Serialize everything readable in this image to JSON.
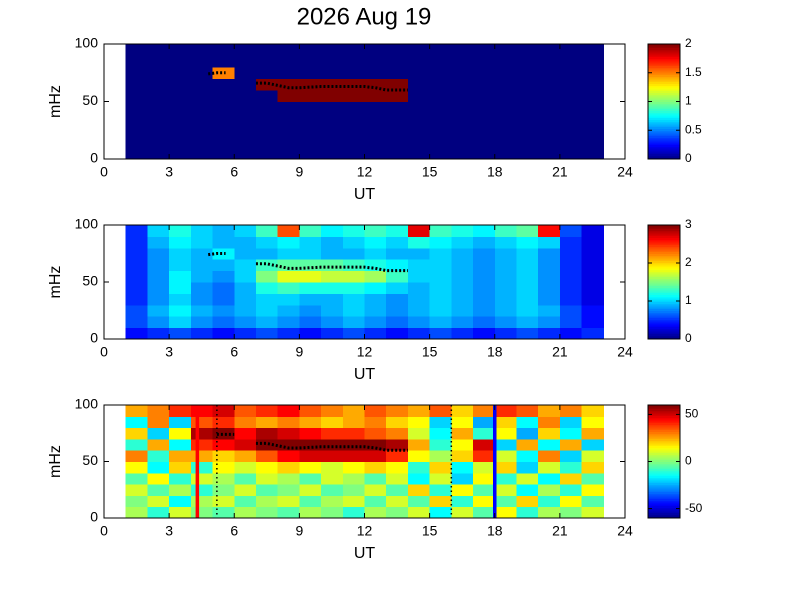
{
  "chart_data": [
    {
      "type": "heatmap",
      "title": "2026 Aug 19",
      "xlabel": "UT",
      "ylabel": "mHz",
      "xlim": [
        0,
        24
      ],
      "xticks": [
        0,
        3,
        6,
        9,
        12,
        15,
        18,
        21,
        24
      ],
      "ylim": [
        0,
        100
      ],
      "yticks": [
        0,
        50,
        100
      ],
      "x_edges": [
        1,
        2,
        3,
        4,
        5,
        6,
        7,
        8,
        9,
        10,
        11,
        12,
        13,
        14,
        15,
        16,
        17,
        18,
        19,
        20,
        21,
        22,
        23
      ],
      "y_edges": [
        0,
        10,
        20,
        30,
        40,
        50,
        60,
        70,
        80,
        90,
        100
      ],
      "colormap": "jet",
      "clim": [
        0,
        2
      ],
      "cticks": [
        0,
        0.5,
        1,
        1.5,
        2
      ],
      "z": [
        [
          0,
          0,
          0,
          0,
          0,
          0,
          0,
          0,
          0,
          0,
          0,
          0,
          0,
          0,
          0,
          0,
          0,
          0,
          0,
          0,
          0,
          0
        ],
        [
          0,
          0,
          0,
          0,
          0,
          0,
          0,
          0,
          0,
          0,
          0,
          0,
          0,
          0,
          0,
          0,
          0,
          0,
          0,
          0,
          0,
          0
        ],
        [
          0,
          0,
          0,
          0,
          0,
          0,
          0,
          0,
          0,
          0,
          0,
          0,
          0,
          0,
          0,
          0,
          0,
          0,
          0,
          0,
          0,
          0
        ],
        [
          0,
          0,
          0,
          0,
          0,
          0,
          0,
          0,
          0,
          0,
          0,
          0,
          0,
          0,
          0,
          0,
          0,
          0,
          0,
          0,
          0,
          0
        ],
        [
          0,
          0,
          0,
          0,
          0,
          0,
          0,
          0,
          0,
          0,
          0,
          0,
          0,
          0,
          0,
          0,
          0,
          0,
          0,
          0,
          0,
          0
        ],
        [
          0,
          0,
          0,
          0,
          0,
          0,
          0,
          2,
          2,
          2,
          2,
          2,
          2,
          0,
          0,
          0,
          0,
          0,
          0,
          0,
          0,
          0
        ],
        [
          0,
          0,
          0,
          0,
          0,
          0,
          2,
          2,
          2,
          2,
          2,
          2,
          2,
          0,
          0,
          0,
          0,
          0,
          0,
          0,
          0,
          0
        ],
        [
          0,
          0,
          0,
          0,
          1.5,
          0,
          0,
          0,
          0,
          0,
          0,
          0,
          0,
          0,
          0,
          0,
          0,
          0,
          0,
          0,
          0,
          0
        ],
        [
          0,
          0,
          0,
          0,
          0,
          0,
          0,
          0,
          0,
          0,
          0,
          0,
          0,
          0,
          0,
          0,
          0,
          0,
          0,
          0,
          0,
          0
        ],
        [
          0,
          0,
          0,
          0,
          0,
          0,
          0,
          0,
          0,
          0,
          0,
          0,
          0,
          0,
          0,
          0,
          0,
          0,
          0,
          0,
          0,
          0
        ]
      ],
      "trace": {
        "color": "#000000",
        "x": [
          4.8,
          5.2,
          5.6,
          6.3,
          7,
          7.5,
          8,
          8.5,
          9,
          10,
          11,
          12,
          12.5,
          13,
          14
        ],
        "y": [
          74,
          75,
          75,
          null,
          66,
          66,
          64,
          62,
          62,
          63,
          63,
          63,
          62,
          60,
          60
        ]
      }
    },
    {
      "type": "heatmap",
      "xlabel": "UT",
      "ylabel": "mHz",
      "xlim": [
        0,
        24
      ],
      "xticks": [
        0,
        3,
        6,
        9,
        12,
        15,
        18,
        21,
        24
      ],
      "ylim": [
        0,
        100
      ],
      "yticks": [
        0,
        50,
        100
      ],
      "x_edges": [
        1,
        2,
        3,
        4,
        5,
        6,
        7,
        8,
        9,
        10,
        11,
        12,
        13,
        14,
        15,
        16,
        17,
        18,
        19,
        20,
        21,
        22,
        23
      ],
      "y_edges": [
        0,
        10,
        20,
        30,
        40,
        50,
        60,
        70,
        80,
        90,
        100
      ],
      "colormap": "jet",
      "clim": [
        0,
        3
      ],
      "cticks": [
        0,
        1,
        2,
        3
      ],
      "z": [
        [
          0.4,
          0.5,
          0.6,
          0.5,
          0.4,
          0.5,
          0.6,
          0.5,
          0.4,
          0.5,
          0.6,
          0.5,
          0.4,
          0.5,
          0.6,
          0.5,
          0.4,
          0.5,
          0.6,
          0.5,
          0.4,
          0.5
        ],
        [
          0.6,
          0.8,
          1.0,
          0.8,
          0.7,
          0.8,
          0.9,
          0.8,
          0.7,
          0.8,
          0.9,
          0.8,
          0.7,
          0.8,
          0.9,
          0.8,
          0.7,
          0.8,
          0.9,
          0.8,
          0.6,
          0.4
        ],
        [
          0.6,
          0.9,
          1.1,
          0.9,
          0.8,
          0.9,
          1.0,
          0.9,
          0.8,
          0.9,
          1.0,
          0.9,
          0.8,
          0.9,
          1.0,
          0.9,
          0.8,
          0.9,
          1.0,
          0.9,
          0.6,
          0.4
        ],
        [
          0.5,
          0.8,
          1.0,
          0.8,
          0.7,
          0.9,
          1.0,
          1.0,
          0.9,
          0.9,
          1.0,
          0.9,
          0.8,
          0.9,
          1.0,
          0.9,
          0.8,
          0.9,
          1.0,
          0.8,
          0.5,
          0.3
        ],
        [
          0.5,
          0.8,
          1.1,
          0.8,
          0.7,
          0.9,
          1.2,
          1.3,
          1.2,
          1.2,
          1.2,
          1.1,
          1.0,
          0.9,
          1.0,
          0.9,
          0.8,
          0.9,
          1.0,
          0.8,
          0.5,
          0.3
        ],
        [
          0.5,
          0.8,
          1.1,
          0.9,
          0.8,
          1.0,
          1.5,
          1.8,
          1.8,
          1.7,
          1.7,
          1.6,
          1.3,
          1.0,
          1.0,
          0.9,
          0.8,
          0.9,
          1.0,
          0.8,
          0.5,
          0.3
        ],
        [
          0.5,
          0.8,
          1.0,
          0.9,
          0.9,
          1.0,
          1.3,
          1.4,
          1.4,
          1.4,
          1.3,
          1.2,
          1.1,
          1.0,
          1.0,
          0.9,
          0.8,
          0.9,
          1.0,
          0.8,
          0.5,
          0.3
        ],
        [
          0.5,
          0.8,
          1.0,
          0.9,
          1.1,
          0.9,
          0.9,
          1.0,
          1.0,
          0.9,
          0.9,
          1.0,
          0.9,
          0.9,
          1.0,
          0.9,
          0.8,
          0.9,
          1.0,
          0.8,
          0.5,
          0.3
        ],
        [
          0.5,
          0.9,
          1.1,
          1.0,
          0.9,
          0.9,
          1.0,
          1.1,
          1.0,
          0.9,
          1.0,
          1.1,
          1.0,
          1.2,
          1.1,
          1.0,
          0.9,
          1.0,
          1.1,
          1.0,
          0.5,
          0.3
        ],
        [
          0.5,
          1.0,
          1.2,
          1.0,
          0.9,
          1.0,
          1.3,
          2.4,
          1.3,
          1.1,
          1.2,
          1.3,
          1.2,
          2.7,
          1.3,
          1.2,
          1.1,
          1.3,
          1.4,
          2.6,
          0.6,
          0.3
        ]
      ],
      "trace": {
        "color": "#000000",
        "x": [
          4.8,
          5.2,
          5.6,
          6.3,
          7,
          7.5,
          8,
          8.5,
          9,
          10,
          11,
          12,
          12.5,
          13,
          14
        ],
        "y": [
          74,
          75,
          75,
          null,
          66,
          66,
          64,
          62,
          62,
          63,
          63,
          63,
          62,
          60,
          60
        ]
      }
    },
    {
      "type": "heatmap",
      "xlabel": "UT",
      "ylabel": "mHz",
      "xlim": [
        0,
        24
      ],
      "xticks": [
        0,
        3,
        6,
        9,
        12,
        15,
        18,
        21,
        24
      ],
      "ylim": [
        0,
        100
      ],
      "yticks": [
        0,
        50,
        100
      ],
      "x_edges": [
        1,
        2,
        3,
        4,
        5,
        6,
        7,
        8,
        9,
        10,
        11,
        12,
        13,
        14,
        15,
        16,
        17,
        18,
        19,
        20,
        21,
        22,
        23
      ],
      "y_edges": [
        0,
        10,
        20,
        30,
        40,
        50,
        60,
        70,
        80,
        90,
        100
      ],
      "colormap": "jet",
      "clim": [
        -60,
        60
      ],
      "cticks": [
        -50,
        0,
        50
      ],
      "z": [
        [
          5,
          -10,
          10,
          0,
          -5,
          5,
          0,
          -5,
          5,
          0,
          -10,
          5,
          0,
          10,
          -15,
          10,
          -5,
          15,
          -10,
          5,
          0,
          10
        ],
        [
          0,
          10,
          -15,
          5,
          10,
          -5,
          5,
          10,
          -5,
          5,
          10,
          -5,
          10,
          -5,
          20,
          -10,
          15,
          -5,
          20,
          -10,
          15,
          -5
        ],
        [
          10,
          -5,
          5,
          -10,
          0,
          10,
          -5,
          0,
          10,
          -5,
          0,
          10,
          -5,
          20,
          -10,
          15,
          -5,
          10,
          -15,
          5,
          -10,
          15
        ],
        [
          -5,
          15,
          -10,
          10,
          5,
          -5,
          10,
          5,
          -5,
          10,
          5,
          -5,
          10,
          -15,
          10,
          -20,
          15,
          -10,
          10,
          -15,
          20,
          -5
        ],
        [
          15,
          -15,
          20,
          -10,
          15,
          10,
          15,
          20,
          15,
          10,
          15,
          20,
          15,
          -10,
          20,
          -15,
          10,
          20,
          -20,
          10,
          -10,
          20
        ],
        [
          30,
          -10,
          25,
          25,
          20,
          25,
          35,
          45,
          50,
          50,
          50,
          50,
          40,
          15,
          5,
          20,
          40,
          10,
          -15,
          30,
          -20,
          10
        ],
        [
          -10,
          25,
          -15,
          40,
          45,
          50,
          60,
          60,
          60,
          60,
          60,
          60,
          55,
          25,
          -10,
          15,
          50,
          -20,
          25,
          -15,
          25,
          -20
        ],
        [
          20,
          -20,
          15,
          55,
          60,
          45,
          55,
          50,
          45,
          40,
          40,
          35,
          30,
          10,
          -15,
          25,
          -10,
          15,
          -25,
          20,
          -15,
          25
        ],
        [
          -15,
          30,
          -20,
          35,
          40,
          30,
          25,
          30,
          25,
          20,
          25,
          30,
          20,
          15,
          -20,
          15,
          -25,
          20,
          -15,
          30,
          -20,
          15
        ],
        [
          25,
          30,
          40,
          45,
          50,
          35,
          40,
          45,
          35,
          30,
          25,
          35,
          30,
          25,
          35,
          20,
          30,
          40,
          35,
          25,
          30,
          20
        ]
      ],
      "trace": {
        "color": "#000000",
        "x": [
          5.2,
          5.6,
          6,
          6.5,
          7,
          7.5,
          8,
          8.5,
          9,
          10,
          11,
          12,
          12.5,
          13,
          14
        ],
        "y": [
          74,
          74,
          74,
          null,
          66,
          66,
          64,
          62,
          62,
          63,
          63,
          63,
          62,
          60,
          60
        ]
      },
      "vlines": [
        {
          "x": 4.3,
          "color": "#ff0000",
          "style": "solid"
        },
        {
          "x": 5.2,
          "color": "#000000",
          "style": "dotted"
        },
        {
          "x": 16,
          "color": "#000000",
          "style": "dotted"
        },
        {
          "x": 18,
          "color": "#0000ff",
          "style": "solid"
        }
      ]
    }
  ]
}
